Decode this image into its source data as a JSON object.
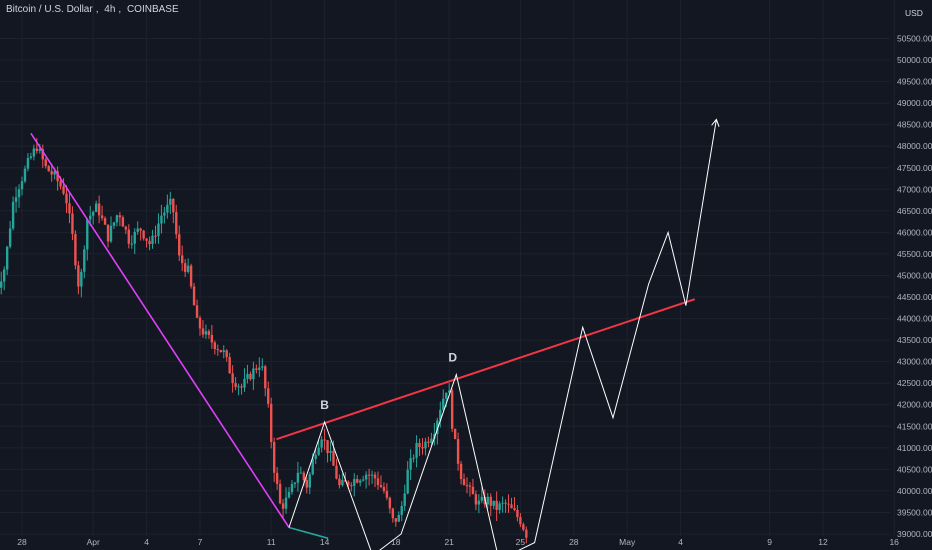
{
  "header": {
    "symbol_name": "Bitcoin / U.S. Dollar",
    "interval": "4h",
    "exchange": "COINBASE",
    "separator": ", "
  },
  "price_axis": {
    "unit": "USD"
  },
  "colors": {
    "background": "#131722",
    "grid": "#1e222d",
    "up_candle": "#26a69a",
    "down_candle": "#ef5350",
    "trend_line": "#e040fb",
    "resistance_line": "#f23645",
    "projection_path": "#ffffff",
    "axis_text": "#b2b5be"
  },
  "chart_data": {
    "type": "candlestick",
    "title": "Bitcoin / U.S. Dollar, 4h, COINBASE",
    "ylabel": "USD",
    "ylim": [
      38800,
      50600
    ],
    "grid": true,
    "y_ticks": [
      39000,
      39500,
      40000,
      40500,
      41000,
      41500,
      42000,
      42500,
      43000,
      43500,
      44000,
      44500,
      45000,
      45500,
      46000,
      46500,
      47000,
      47500,
      48000,
      48500,
      49000,
      49500,
      50000,
      50500
    ],
    "y_tick_labels": [
      "39000.00",
      "39500.00",
      "40000.00",
      "40500.00",
      "41000.00",
      "41500.00",
      "42000.00",
      "42500.00",
      "43000.00",
      "43500.00",
      "44000.00",
      "44500.00",
      "45000.00",
      "45500.00",
      "46000.00",
      "46500.00",
      "47000.00",
      "47500.00",
      "48000.00",
      "48500.00",
      "49000.00",
      "49500.00",
      "50000.00",
      "50500.00"
    ],
    "x_ticks": [
      {
        "label": "28",
        "day": 0
      },
      {
        "label": "Apr",
        "day": 4
      },
      {
        "label": "4",
        "day": 7
      },
      {
        "label": "7",
        "day": 10
      },
      {
        "label": "11",
        "day": 14
      },
      {
        "label": "14",
        "day": 17
      },
      {
        "label": "18",
        "day": 21
      },
      {
        "label": "21",
        "day": 24
      },
      {
        "label": "25",
        "day": 28
      },
      {
        "label": "28",
        "day": 31
      },
      {
        "label": "May",
        "day": 34
      },
      {
        "label": "4",
        "day": 37
      },
      {
        "label": "9",
        "day": 42
      },
      {
        "label": "12",
        "day": 45
      },
      {
        "label": "16",
        "day": 49
      }
    ],
    "price_path": [
      {
        "day": -1.5,
        "price": 44400
      },
      {
        "day": -0.8,
        "price": 45200
      },
      {
        "day": -0.3,
        "price": 46800
      },
      {
        "day": 0.2,
        "price": 47300
      },
      {
        "day": 0.6,
        "price": 47700
      },
      {
        "day": 1.0,
        "price": 48000
      },
      {
        "day": 1.5,
        "price": 47500
      },
      {
        "day": 2.0,
        "price": 47300
      },
      {
        "day": 2.6,
        "price": 46900
      },
      {
        "day": 3.0,
        "price": 45900
      },
      {
        "day": 3.4,
        "price": 44600
      },
      {
        "day": 3.8,
        "price": 46300
      },
      {
        "day": 4.4,
        "price": 46600
      },
      {
        "day": 5.0,
        "price": 45900
      },
      {
        "day": 5.6,
        "price": 46500
      },
      {
        "day": 6.2,
        "price": 45800
      },
      {
        "day": 6.8,
        "price": 46100
      },
      {
        "day": 7.4,
        "price": 45700
      },
      {
        "day": 8.0,
        "price": 46400
      },
      {
        "day": 8.6,
        "price": 46700
      },
      {
        "day": 9.0,
        "price": 45400
      },
      {
        "day": 9.5,
        "price": 45100
      },
      {
        "day": 10.0,
        "price": 43900
      },
      {
        "day": 10.5,
        "price": 43600
      },
      {
        "day": 11.0,
        "price": 43400
      },
      {
        "day": 11.5,
        "price": 43200
      },
      {
        "day": 12.0,
        "price": 42600
      },
      {
        "day": 12.5,
        "price": 42400
      },
      {
        "day": 13.0,
        "price": 42700
      },
      {
        "day": 13.6,
        "price": 43000
      },
      {
        "day": 14.0,
        "price": 41900
      },
      {
        "day": 14.3,
        "price": 40600
      },
      {
        "day": 14.7,
        "price": 39600
      },
      {
        "day": 15.2,
        "price": 39900
      },
      {
        "day": 15.7,
        "price": 40500
      },
      {
        "day": 16.2,
        "price": 40100
      },
      {
        "day": 16.6,
        "price": 40900
      },
      {
        "day": 17.0,
        "price": 41300
      },
      {
        "day": 17.5,
        "price": 40800
      },
      {
        "day": 18.0,
        "price": 40100
      },
      {
        "day": 18.5,
        "price": 40200
      },
      {
        "day": 19.0,
        "price": 40300
      },
      {
        "day": 19.5,
        "price": 40400
      },
      {
        "day": 20.0,
        "price": 40300
      },
      {
        "day": 20.5,
        "price": 40000
      },
      {
        "day": 21.0,
        "price": 39300
      },
      {
        "day": 21.4,
        "price": 39400
      },
      {
        "day": 21.8,
        "price": 40400
      },
      {
        "day": 22.3,
        "price": 41000
      },
      {
        "day": 22.8,
        "price": 41100
      },
      {
        "day": 23.3,
        "price": 41400
      },
      {
        "day": 23.7,
        "price": 42000
      },
      {
        "day": 24.1,
        "price": 42500
      },
      {
        "day": 24.4,
        "price": 41300
      },
      {
        "day": 24.8,
        "price": 40400
      },
      {
        "day": 25.3,
        "price": 40000
      },
      {
        "day": 25.8,
        "price": 39700
      },
      {
        "day": 26.3,
        "price": 39800
      },
      {
        "day": 26.8,
        "price": 39600
      },
      {
        "day": 27.3,
        "price": 39700
      },
      {
        "day": 27.8,
        "price": 39500
      },
      {
        "day": 28.2,
        "price": 39300
      },
      {
        "day": 28.5,
        "price": 39000
      }
    ],
    "annotations": [
      {
        "type": "trend_line",
        "name": "downtrend",
        "points": [
          {
            "day": 0.5,
            "price": 48300
          },
          {
            "day": 15.0,
            "price": 39150
          }
        ]
      },
      {
        "type": "trend_line",
        "name": "support-segment",
        "points": [
          {
            "day": 15.0,
            "price": 39150
          },
          {
            "day": 17.2,
            "price": 38900
          }
        ]
      },
      {
        "type": "trend_line",
        "name": "resistance",
        "points": [
          {
            "day": 14.3,
            "price": 41200
          },
          {
            "day": 37.8,
            "price": 44450
          }
        ]
      },
      {
        "type": "path",
        "name": "projection",
        "points": [
          {
            "day": 15.0,
            "price": 39150
          },
          {
            "day": 17.0,
            "price": 41600
          },
          {
            "day": 19.7,
            "price": 38500
          },
          {
            "day": 21.3,
            "price": 39000
          },
          {
            "day": 24.4,
            "price": 42700
          },
          {
            "day": 26.8,
            "price": 38400
          },
          {
            "day": 28.8,
            "price": 38800
          },
          {
            "day": 31.5,
            "price": 43800
          },
          {
            "day": 33.2,
            "price": 41700
          },
          {
            "day": 35.2,
            "price": 44800
          },
          {
            "day": 36.3,
            "price": 46000
          },
          {
            "day": 37.3,
            "price": 44300
          },
          {
            "day": 39.0,
            "price": 48600
          }
        ],
        "arrow_end": true
      }
    ],
    "labels": [
      {
        "text": "B",
        "day": 17.0,
        "price": 41900
      },
      {
        "text": "D",
        "day": 24.2,
        "price": 43000
      }
    ]
  }
}
